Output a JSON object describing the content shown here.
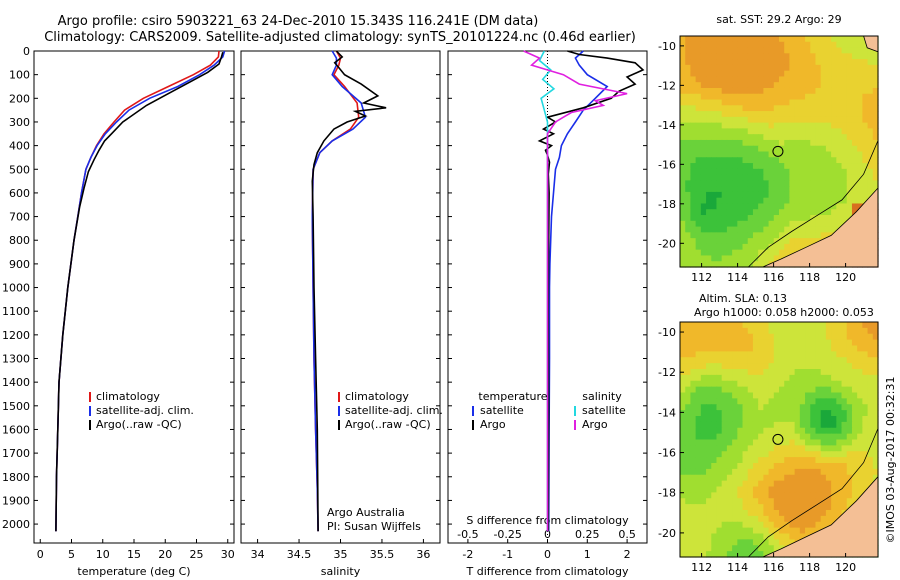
{
  "header": {
    "title_line1": "Argo profile: csiro 5903221_63 24-Dec-2010 15.343S 116.241E (DM data)",
    "title_line2": "Climatology: CARS2009. Satellite-adjusted climatology: synTS_20101224.nc (0.46d earlier)"
  },
  "colors": {
    "climatology": "#e01818",
    "satellite": "#1a2ee8",
    "argo": "#000000",
    "satellite_s": "#22d8e0",
    "argo_s": "#e020e0"
  },
  "chart_data": [
    {
      "id": "temperature",
      "type": "line",
      "xlabel": "temperature (deg C)",
      "ylabel": "",
      "xlim": [
        -1,
        31
      ],
      "ylim": [
        2080,
        0
      ],
      "xticks": [
        0,
        5,
        10,
        15,
        20,
        25,
        30
      ],
      "xtick_labels": [
        "0",
        "5",
        "10",
        "15",
        "20",
        "25",
        "30"
      ],
      "yticks": [
        0,
        100,
        200,
        300,
        400,
        500,
        600,
        700,
        800,
        900,
        1000,
        1100,
        1200,
        1300,
        1400,
        1500,
        1600,
        1700,
        1800,
        1900,
        2000
      ],
      "ytick_labels": [
        "0",
        "100",
        "200",
        "300",
        "400",
        "500",
        "600",
        "700",
        "800",
        "900",
        "1000",
        "1100",
        "1200",
        "1300",
        "1400",
        "1500",
        "1600",
        "1700",
        "1800",
        "1900",
        "2000"
      ],
      "legend": [
        "climatology",
        "satellite-adj. clim.",
        "Argo(..raw -QC)"
      ],
      "series": [
        {
          "name": "climatology",
          "color_key": "climatology",
          "x": [
            28.6,
            28.5,
            27.2,
            24.5,
            20.5,
            16.5,
            13.5,
            11.8,
            10.2,
            9.0,
            8.1,
            7.3,
            6.6,
            6.0,
            5.4,
            4.9,
            4.4,
            4.0,
            3.6,
            3.3,
            3.0,
            2.8,
            2.6,
            2.5
          ],
          "y": [
            0,
            25,
            60,
            100,
            150,
            200,
            250,
            300,
            350,
            400,
            450,
            500,
            600,
            700,
            800,
            900,
            1000,
            1100,
            1200,
            1300,
            1400,
            1600,
            1800,
            2030
          ]
        },
        {
          "name": "satellite-adj. clim.",
          "color_key": "satellite",
          "x": [
            29.5,
            29.2,
            27.8,
            25.5,
            22.0,
            17.5,
            14.2,
            12.2,
            10.4,
            9.1,
            8.1,
            7.3,
            6.6,
            6.0,
            5.4,
            4.9,
            4.4,
            4.0,
            3.6,
            3.3,
            3.0,
            2.8,
            2.6,
            2.5
          ],
          "y": [
            0,
            25,
            60,
            100,
            150,
            200,
            250,
            300,
            350,
            400,
            450,
            500,
            600,
            700,
            800,
            900,
            1000,
            1100,
            1200,
            1300,
            1400,
            1600,
            1800,
            2030
          ]
        },
        {
          "name": "Argo(..raw -QC)",
          "color_key": "argo",
          "x": [
            29.2,
            29.0,
            28.6,
            26.8,
            24.0,
            20.5,
            17.0,
            13.2,
            11.4,
            10.3,
            9.4,
            8.6,
            7.7,
            7.0,
            6.3,
            5.4,
            4.9,
            4.4,
            4.0,
            3.6,
            3.3,
            3.0,
            2.8,
            2.6,
            2.5
          ],
          "y": [
            5,
            25,
            55,
            90,
            130,
            180,
            230,
            300,
            350,
            380,
            420,
            460,
            510,
            580,
            660,
            800,
            900,
            1000,
            1100,
            1200,
            1300,
            1400,
            1600,
            1800,
            2030
          ]
        }
      ]
    },
    {
      "id": "salinity",
      "type": "line",
      "xlabel": "salinity",
      "ylabel": "",
      "xlim": [
        33.8,
        36.2
      ],
      "ylim": [
        2080,
        0
      ],
      "xticks": [
        34,
        34.5,
        35,
        35.5,
        36
      ],
      "xtick_labels": [
        "34",
        "34.5",
        "35",
        "35.5",
        "36"
      ],
      "legend": [
        "climatology",
        "satellite-adj. clim.",
        "Argo(..raw -QC)"
      ],
      "annotation": [
        "Argo Australia",
        "PI: Susan Wijffels"
      ],
      "series": [
        {
          "name": "climatology",
          "color_key": "climatology",
          "x": [
            34.95,
            35.0,
            34.98,
            34.92,
            35.05,
            35.2,
            35.22,
            35.12,
            34.9,
            34.75,
            34.67,
            34.66,
            34.67,
            34.68,
            34.7,
            34.72,
            34.73
          ],
          "y": [
            0,
            30,
            60,
            100,
            150,
            220,
            280,
            330,
            380,
            430,
            500,
            700,
            1000,
            1300,
            1600,
            1850,
            2030
          ]
        },
        {
          "name": "satellite-adj. clim.",
          "color_key": "satellite",
          "x": [
            34.9,
            34.95,
            34.95,
            34.9,
            35.02,
            35.25,
            35.3,
            35.15,
            34.9,
            34.75,
            34.67,
            34.66,
            34.67,
            34.68,
            34.7,
            34.72,
            34.73
          ],
          "y": [
            0,
            30,
            60,
            100,
            150,
            220,
            280,
            330,
            380,
            430,
            500,
            700,
            1000,
            1300,
            1600,
            1850,
            2030
          ]
        },
        {
          "name": "Argo(..raw -QC)",
          "color_key": "argo",
          "x": [
            34.95,
            35.02,
            34.93,
            34.98,
            35.05,
            35.25,
            35.45,
            35.28,
            35.55,
            35.18,
            35.3,
            35.08,
            34.92,
            34.8,
            34.72,
            34.68,
            34.66,
            34.67,
            34.68,
            34.7,
            34.72,
            34.73
          ],
          "y": [
            0,
            25,
            50,
            70,
            100,
            140,
            190,
            220,
            240,
            255,
            275,
            300,
            330,
            380,
            430,
            480,
            550,
            700,
            1000,
            1300,
            1600,
            2030
          ]
        }
      ]
    },
    {
      "id": "difference",
      "type": "line",
      "xlabel": "T difference from climatology",
      "x2label": "S difference from climatology",
      "xlim": [
        -2.5,
        2.5
      ],
      "ylim": [
        2080,
        0
      ],
      "xticks": [
        -2,
        -1,
        0,
        1,
        2
      ],
      "xtick_labels": [
        "-2",
        "-1",
        "0",
        "1",
        "2"
      ],
      "x2ticks": [
        -0.5,
        -0.25,
        0,
        0.25,
        0.5
      ],
      "x2tick_labels": [
        "-0.5",
        "-0.25",
        "0",
        "0.25",
        "0.5"
      ],
      "x2lim": [
        -0.625,
        0.625
      ],
      "legend": [
        "temperature",
        "satellite",
        "Argo",
        "salinity",
        "satellite",
        "Argo"
      ],
      "series": [
        {
          "name": "T satellite",
          "color_key": "satellite",
          "x": [
            0.9,
            0.7,
            0.8,
            1.0,
            1.5,
            1.2,
            0.9,
            0.7,
            0.5,
            0.35,
            0.3,
            0.2,
            0.15,
            0.1,
            0.08,
            0.06,
            0.05,
            0.05,
            0.04,
            0.03
          ],
          "y": [
            0,
            30,
            60,
            100,
            150,
            200,
            250,
            300,
            350,
            400,
            450,
            500,
            600,
            700,
            800,
            900,
            1000,
            1300,
            1600,
            2030
          ]
        },
        {
          "name": "T Argo",
          "color_key": "argo",
          "x": [
            0.5,
            0.8,
            1.5,
            2.2,
            2.4,
            2.0,
            2.2,
            1.8,
            1.6,
            0.9,
            0.0,
            0.2,
            -0.1,
            0.15,
            -0.2,
            0.1,
            -0.05,
            0.0,
            0.05,
            0.02,
            0.04,
            0.03,
            0.02,
            0.03,
            0.02
          ],
          "y": [
            0,
            15,
            30,
            50,
            80,
            110,
            140,
            170,
            200,
            240,
            280,
            300,
            330,
            350,
            380,
            400,
            420,
            440,
            470,
            520,
            600,
            800,
            1100,
            1500,
            2030
          ]
        },
        {
          "name": "S satellite",
          "color_key": "satellite_s",
          "x": [
            -0.02,
            -0.05,
            0.02,
            -0.03,
            0.04,
            -0.04,
            -0.02,
            0.0,
            0.0,
            0.0,
            0.0,
            0.0
          ],
          "y": [
            0,
            40,
            80,
            120,
            160,
            200,
            250,
            300,
            500,
            1000,
            1500,
            2030
          ]
        },
        {
          "name": "S Argo",
          "color_key": "argo_s",
          "x": [
            -0.15,
            -0.05,
            -0.1,
            0.1,
            0.2,
            0.5,
            0.3,
            0.35,
            0.15,
            0.1,
            0.05,
            0.0,
            0.0,
            0.0
          ],
          "y": [
            0,
            30,
            60,
            100,
            140,
            180,
            210,
            230,
            260,
            280,
            300,
            350,
            500,
            2030
          ]
        }
      ]
    },
    {
      "id": "sst_map",
      "type": "heatmap",
      "title": "sat. SST: 29.2 Argo: 29",
      "xlim": [
        110.8,
        121.8
      ],
      "ylim": [
        -21.2,
        -9.5
      ],
      "xticks": [
        112,
        114,
        116,
        118,
        120
      ],
      "xtick_labels": [
        "112",
        "114",
        "116",
        "118",
        "120"
      ],
      "yticks": [
        -10,
        -12,
        -14,
        -16,
        -18,
        -20
      ],
      "ytick_labels": [
        "-10",
        "-12",
        "-14",
        "-16",
        "-18",
        "-20"
      ],
      "marker": {
        "lon": 116.241,
        "lat": -15.343
      },
      "palette": [
        "#1aa83a",
        "#3cc23a",
        "#6ad23a",
        "#a0de30",
        "#cde43a",
        "#e9d230",
        "#f0b82a",
        "#e89a28",
        "#d87020"
      ]
    },
    {
      "id": "sla_map",
      "type": "heatmap",
      "title": "Altim. SLA: 0.13",
      "subtitle": "Argo h1000: 0.058 h2000: 0.053",
      "xlim": [
        110.8,
        121.8
      ],
      "ylim": [
        -21.2,
        -9.5
      ],
      "xticks": [
        112,
        114,
        116,
        118,
        120
      ],
      "xtick_labels": [
        "112",
        "114",
        "116",
        "118",
        "120"
      ],
      "yticks": [
        -10,
        -12,
        -14,
        -16,
        -18,
        -20
      ],
      "ytick_labels": [
        "-10",
        "-12",
        "-14",
        "-16",
        "-18",
        "-20"
      ],
      "marker": {
        "lon": 116.241,
        "lat": -15.343
      },
      "palette": [
        "#1aa83a",
        "#3cc23a",
        "#6ad23a",
        "#a0de30",
        "#cde43a",
        "#e9d230",
        "#f0b82a",
        "#e89a28",
        "#d87020"
      ]
    }
  ],
  "footer": {
    "credit": "©IMOS 03-Aug-2017 00:32:31"
  }
}
